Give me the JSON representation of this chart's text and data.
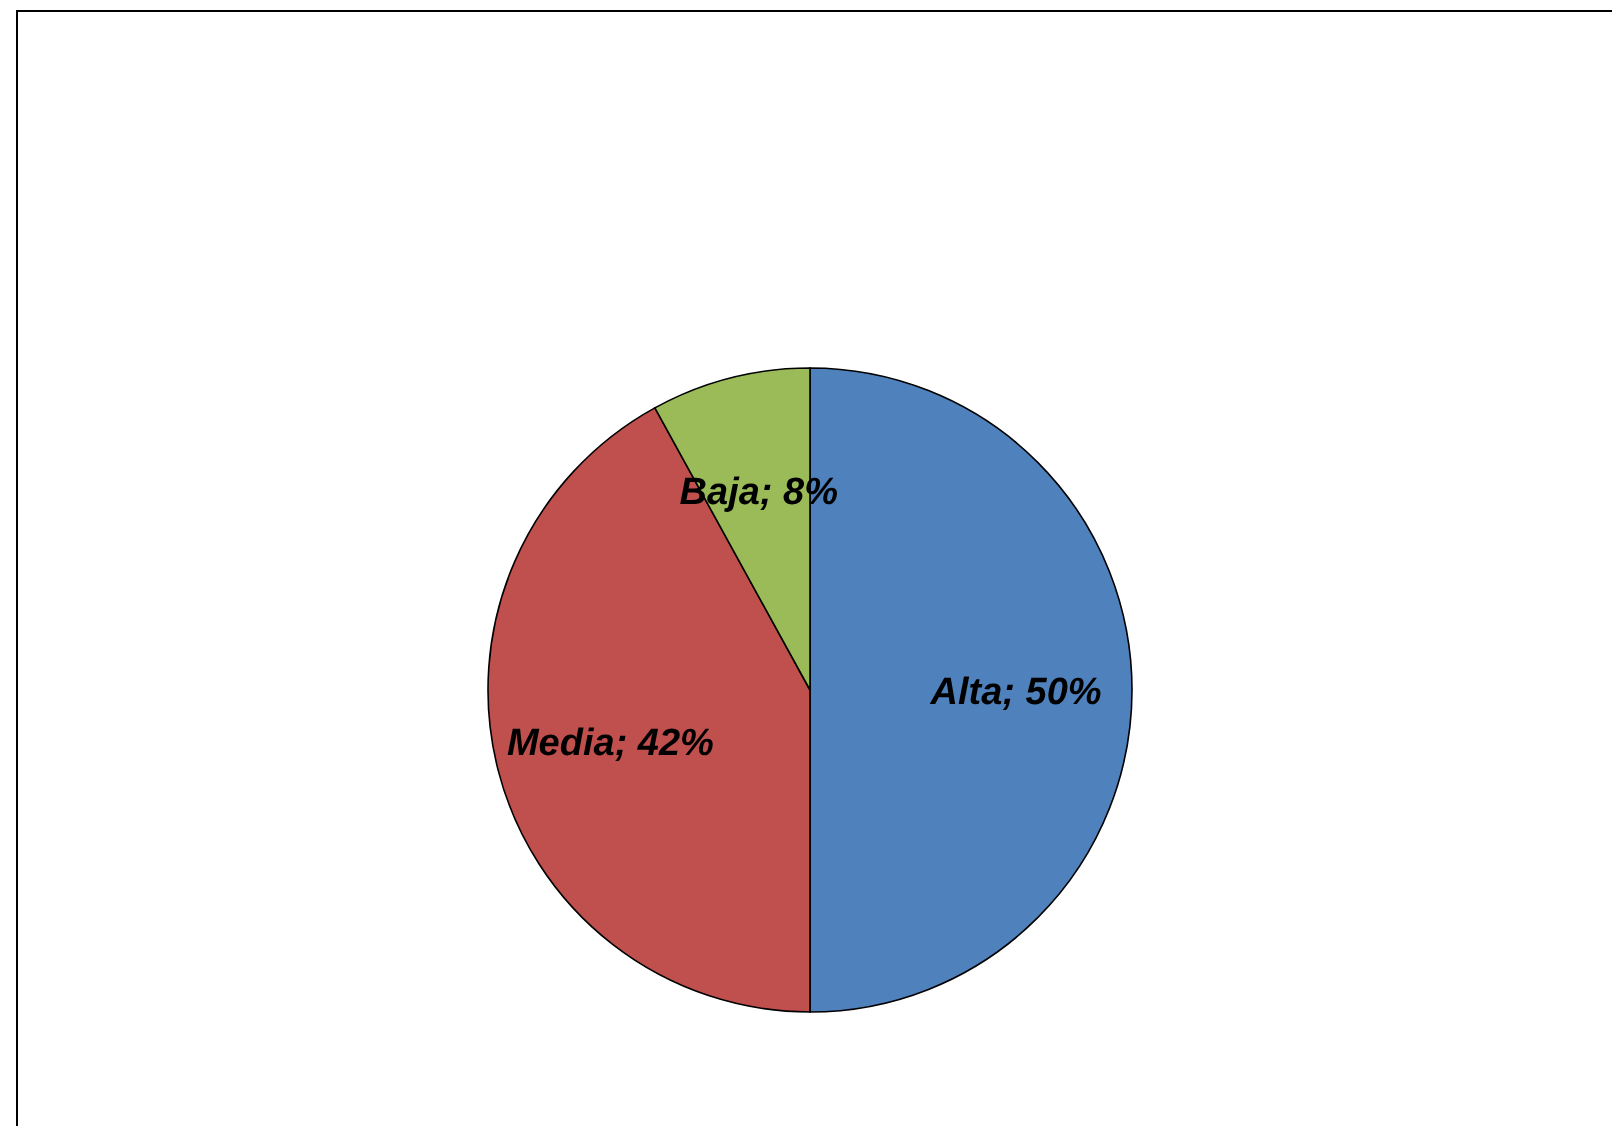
{
  "chart_data": {
    "type": "pie",
    "categories": [
      "Alta",
      "Media",
      "Baja"
    ],
    "values": [
      50,
      42,
      8
    ],
    "colors": [
      "#4f81bd",
      "#c0504d",
      "#9bbb59"
    ],
    "value_labels": [
      "50%",
      "42%",
      "8%"
    ],
    "legend": false
  }
}
